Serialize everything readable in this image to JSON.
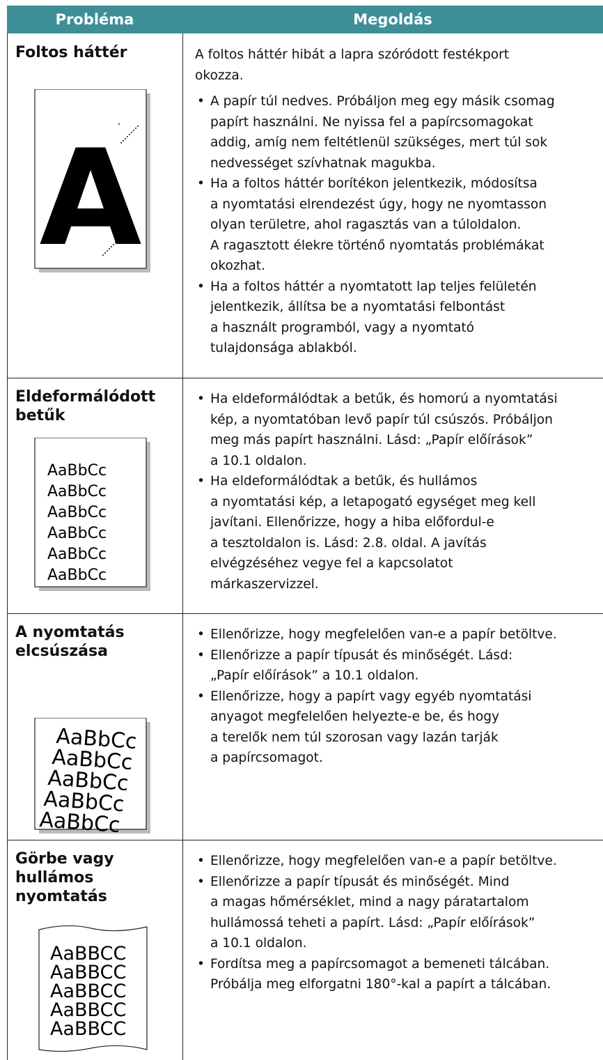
{
  "table": {
    "header": [
      "Probléma",
      "Megoldás"
    ],
    "rows": [
      {
        "title": [
          "Foltos háttér"
        ],
        "letter": "A",
        "intro": [
          "A foltos háttér hibát a lapra szóródott festékport",
          "okozza."
        ],
        "bullets": [
          [
            "A papír túl nedves. Próbáljon meg egy másik csomag",
            "papírt használni. Ne nyissa fel a papírcsomagokat",
            "addig, amíg nem feltétlenül szükséges, mert túl sok",
            "nedvességet szívhatnak magukba."
          ],
          [
            "Ha a foltos háttér borítékon jelentkezik, módosítsa",
            "a nyomtatási elrendezést úgy, hogy ne nyomtasson",
            "olyan területre, ahol ragasztás van a túloldalon.",
            "A ragasztott élekre történő nyomtatás problémákat",
            "okozhat."
          ],
          [
            "Ha a foltos háttér a nyomtatott lap teljes felületén",
            "jelentkezik, állítsa be a nyomtatási felbontást",
            "a használt programból, vagy a nyomtató",
            "tulajdonsága ablakból."
          ]
        ]
      },
      {
        "title": [
          "Eldeformálódott",
          "betűk"
        ],
        "sample": "AaBbCc",
        "bullets": [
          [
            "Ha eldeformálódtak a betűk, és homorú a nyomtatási",
            "kép, a nyomtatóban levő papír túl csúszós. Próbáljon",
            "meg más papírt használni. Lásd: „Papír előírások”",
            "a 10.1 oldalon."
          ],
          [
            "Ha eldeformálódtak a betűk, és hullámos",
            "a nyomtatási kép, a letapogató egységet meg kell",
            "javítani. Ellenőrizze, hogy a hiba előfordul-e",
            "a tesztoldalon is. Lásd: 2.8. oldal. A javítás",
            "elvégzéséhez vegye fel a kapcsolatot",
            "márkaszervizzel."
          ]
        ]
      },
      {
        "title": [
          "A nyomtatás",
          "elcsúszása"
        ],
        "sample": "AaBbCc",
        "bullets": [
          [
            "Ellenőrizze, hogy megfelelően van-e a papír betöltve."
          ],
          [
            "Ellenőrizze a papír típusát és minőségét. Lásd:",
            "„Papír előírások” a 10.1 oldalon."
          ],
          [
            "Ellenőrizze, hogy a papírt vagy egyéb nyomtatási",
            "anyagot megfelelően helyezte-e be, és hogy",
            "a terelők nem túl szorosan vagy lazán tarják",
            "a papírcsomagot."
          ]
        ]
      },
      {
        "title": [
          "Görbe vagy",
          "hullámos",
          "nyomtatás"
        ],
        "sample": "AaBBCC",
        "bullets": [
          [
            "Ellenőrizze, hogy megfelelően van-e a papír betöltve."
          ],
          [
            "Ellenőrizze a papír típusát és minőségét. Mind",
            "a magas hőmérséklet, mind a nagy páratartalom",
            "hullámossá teheti a papírt. Lásd: „Papír előírások”",
            "a 10.1 oldalon."
          ],
          [
            "Fordítsa meg a papírcsomagot a bemeneti tálcában.",
            "Próbálja meg elforgatni 180°-kal a papírt a tálcában."
          ]
        ]
      }
    ]
  }
}
